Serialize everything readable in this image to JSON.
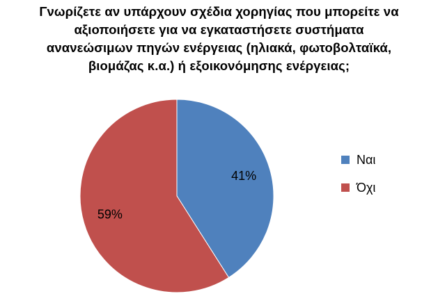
{
  "chart_data": {
    "type": "pie",
    "title_lines": [
      "Γνωρίζετε αν υπάρχουν σχέδια χορηγίας που μπορείτε να",
      "αξιοποιήσετε για να εγκαταστήσετε συστήματα",
      "ανανεώσιμων πηγών ενέργειας (ηλιακά, φωτοβολταϊκά,",
      "βιομάζας κ.α.) ή εξοικονόμησης ενέργειας;"
    ],
    "slices": [
      {
        "label": "Ναι",
        "value": 41,
        "display": "41%",
        "color": "#4F81BD"
      },
      {
        "label": "Όχι",
        "value": 59,
        "display": "59%",
        "color": "#C0504D"
      }
    ],
    "legend_position": "right"
  }
}
